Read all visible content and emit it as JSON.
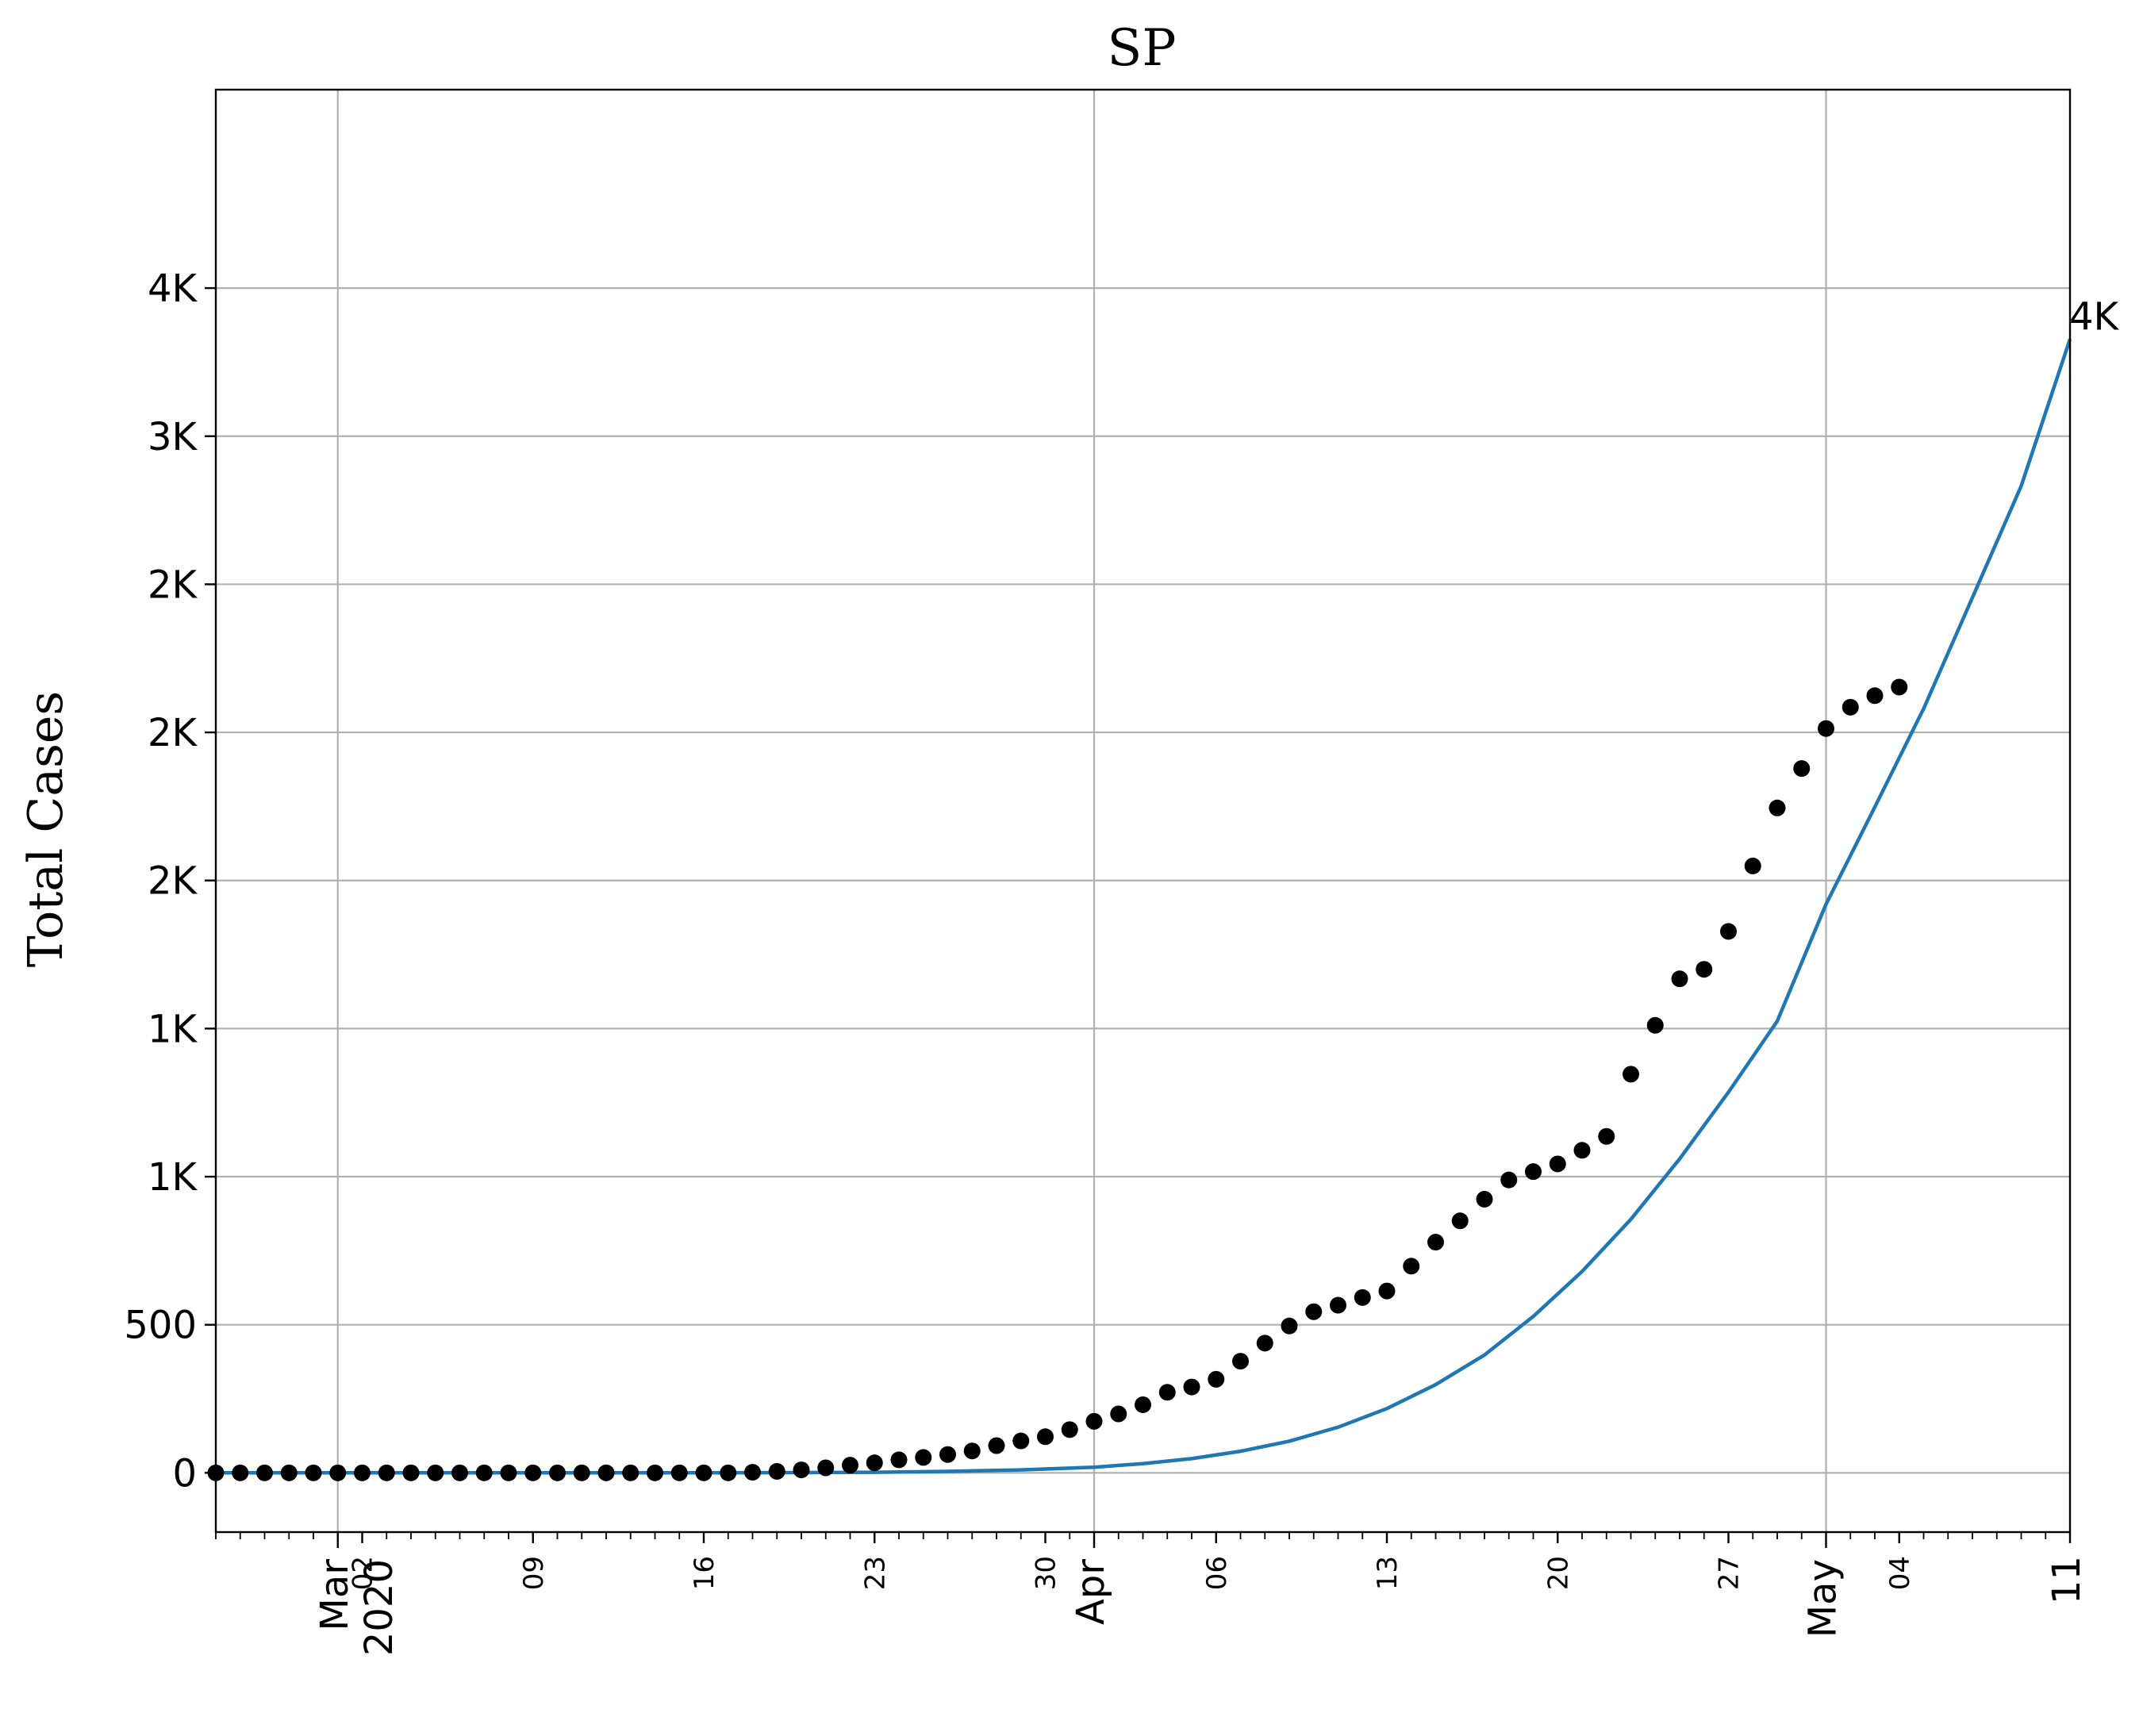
{
  "chart_data": {
    "type": "scatter",
    "title": "SP",
    "xlabel": "",
    "ylabel": "Total Cases",
    "grid": true,
    "x_axis": {
      "kind": "date",
      "range": [
        "2020-02-25",
        "2020-05-11"
      ],
      "major_ticks": [
        {
          "date": "2020-03-01",
          "label": "Mar\n2020"
        },
        {
          "date": "2020-04-01",
          "label": "Apr"
        },
        {
          "date": "2020-05-01",
          "label": "May"
        }
      ],
      "minor_ticks": [
        {
          "date": "2020-03-02",
          "label": "02"
        },
        {
          "date": "2020-03-09",
          "label": "09"
        },
        {
          "date": "2020-03-16",
          "label": "16"
        },
        {
          "date": "2020-03-23",
          "label": "23"
        },
        {
          "date": "2020-03-30",
          "label": "30"
        },
        {
          "date": "2020-04-06",
          "label": "06"
        },
        {
          "date": "2020-04-13",
          "label": "13"
        },
        {
          "date": "2020-04-20",
          "label": "20"
        },
        {
          "date": "2020-04-27",
          "label": "27"
        },
        {
          "date": "2020-05-04",
          "label": "04"
        },
        {
          "date": "2020-05-11",
          "label": "11"
        }
      ]
    },
    "y_axis": {
      "range": [
        -200,
        4670
      ],
      "ticks": [
        {
          "value": 0,
          "label": "0"
        },
        {
          "value": 500,
          "label": "500"
        },
        {
          "value": 1000,
          "label": "1K"
        },
        {
          "value": 1500,
          "label": "1K"
        },
        {
          "value": 2000,
          "label": "2K"
        },
        {
          "value": 2500,
          "label": "2K"
        },
        {
          "value": 3000,
          "label": "2K"
        },
        {
          "value": 3500,
          "label": "3K"
        },
        {
          "value": 4000,
          "label": "4K"
        }
      ]
    },
    "series": [
      {
        "kind": "scatter",
        "color": "#000000",
        "points": [
          [
            "2020-02-25",
            0
          ],
          [
            "2020-02-26",
            0
          ],
          [
            "2020-02-27",
            0
          ],
          [
            "2020-02-28",
            0
          ],
          [
            "2020-02-29",
            0
          ],
          [
            "2020-03-01",
            0
          ],
          [
            "2020-03-02",
            0
          ],
          [
            "2020-03-03",
            0
          ],
          [
            "2020-03-04",
            0
          ],
          [
            "2020-03-05",
            0
          ],
          [
            "2020-03-06",
            0
          ],
          [
            "2020-03-07",
            0
          ],
          [
            "2020-03-08",
            0
          ],
          [
            "2020-03-09",
            0
          ],
          [
            "2020-03-10",
            0
          ],
          [
            "2020-03-11",
            0
          ],
          [
            "2020-03-12",
            0
          ],
          [
            "2020-03-13",
            0
          ],
          [
            "2020-03-14",
            0
          ],
          [
            "2020-03-15",
            0
          ],
          [
            "2020-03-16",
            0
          ],
          [
            "2020-03-17",
            0
          ],
          [
            "2020-03-18",
            2
          ],
          [
            "2020-03-19",
            5
          ],
          [
            "2020-03-20",
            10
          ],
          [
            "2020-03-21",
            17
          ],
          [
            "2020-03-22",
            26
          ],
          [
            "2020-03-23",
            34
          ],
          [
            "2020-03-24",
            44
          ],
          [
            "2020-03-25",
            52
          ],
          [
            "2020-03-26",
            62
          ],
          [
            "2020-03-27",
            74
          ],
          [
            "2020-03-28",
            92
          ],
          [
            "2020-03-29",
            108
          ],
          [
            "2020-03-30",
            122
          ],
          [
            "2020-03-31",
            146
          ],
          [
            "2020-04-01",
            174
          ],
          [
            "2020-04-02",
            199
          ],
          [
            "2020-04-03",
            230
          ],
          [
            "2020-04-04",
            272
          ],
          [
            "2020-04-05",
            290
          ],
          [
            "2020-04-06",
            316
          ],
          [
            "2020-04-07",
            377
          ],
          [
            "2020-04-08",
            438
          ],
          [
            "2020-04-09",
            496
          ],
          [
            "2020-04-10",
            544
          ],
          [
            "2020-04-11",
            566
          ],
          [
            "2020-04-12",
            592
          ],
          [
            "2020-04-13",
            614
          ],
          [
            "2020-04-14",
            698
          ],
          [
            "2020-04-15",
            779
          ],
          [
            "2020-04-16",
            851
          ],
          [
            "2020-04-17",
            924
          ],
          [
            "2020-04-18",
            989
          ],
          [
            "2020-04-19",
            1017
          ],
          [
            "2020-04-20",
            1043
          ],
          [
            "2020-04-21",
            1089
          ],
          [
            "2020-04-22",
            1136
          ],
          [
            "2020-04-23",
            1346
          ],
          [
            "2020-04-24",
            1511
          ],
          [
            "2020-04-25",
            1668
          ],
          [
            "2020-04-26",
            1700
          ],
          [
            "2020-04-27",
            1828
          ],
          [
            "2020-04-28",
            2049
          ],
          [
            "2020-04-29",
            2245
          ],
          [
            "2020-04-30",
            2378
          ],
          [
            "2020-05-01",
            2513
          ],
          [
            "2020-05-02",
            2585
          ],
          [
            "2020-05-03",
            2624
          ],
          [
            "2020-05-04",
            2653
          ]
        ]
      },
      {
        "kind": "line",
        "color": "#1f77b4",
        "points": [
          [
            "2020-02-25",
            0
          ],
          [
            "2020-03-09",
            0
          ],
          [
            "2020-03-16",
            0
          ],
          [
            "2020-03-20",
            1
          ],
          [
            "2020-03-23",
            2
          ],
          [
            "2020-03-26",
            5
          ],
          [
            "2020-03-29",
            10
          ],
          [
            "2020-04-01",
            19
          ],
          [
            "2020-04-03",
            31
          ],
          [
            "2020-04-05",
            48
          ],
          [
            "2020-04-07",
            73
          ],
          [
            "2020-04-09",
            107
          ],
          [
            "2020-04-11",
            154
          ],
          [
            "2020-04-13",
            217
          ],
          [
            "2020-04-15",
            298
          ],
          [
            "2020-04-17",
            398
          ],
          [
            "2020-04-19",
            528
          ],
          [
            "2020-04-21",
            680
          ],
          [
            "2020-04-23",
            856
          ],
          [
            "2020-04-25",
            1060
          ],
          [
            "2020-04-27",
            1285
          ],
          [
            "2020-04-29",
            1525
          ],
          [
            "2020-05-01",
            1920
          ],
          [
            "2020-05-03",
            2248
          ],
          [
            "2020-05-05",
            2580
          ],
          [
            "2020-05-07",
            2955
          ],
          [
            "2020-05-09",
            3332
          ],
          [
            "2020-05-11",
            3828
          ]
        ]
      }
    ],
    "annotations": [
      {
        "text": "4K",
        "date": "2020-05-11",
        "value": 3828
      }
    ]
  }
}
